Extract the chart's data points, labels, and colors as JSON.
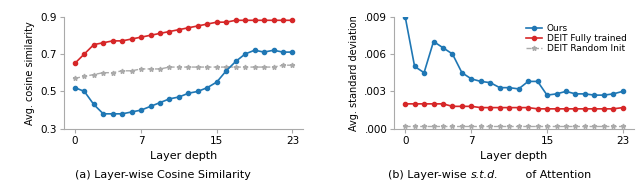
{
  "left_caption": "(a) Layer-wise Cosine Similarity",
  "right_caption": "(b) Layer-wise s.t.d. of Attention",
  "xlabel": "Layer depth",
  "left_ylabel": "Avg. cosine similarity",
  "right_ylabel": "Avg. standard deviation",
  "legend_labels": [
    "Ours",
    "DEIT Fully trained",
    "DEIT Random Init"
  ],
  "blue": "#1f77b4",
  "red": "#d62728",
  "gray": "#aaaaaa",
  "left_ylim": [
    0.3,
    0.9
  ],
  "left_yticks": [
    0.3,
    0.5,
    0.7,
    0.9
  ],
  "right_ylim": [
    0.0,
    0.009
  ],
  "right_yticks": [
    0.0,
    0.003,
    0.006,
    0.009
  ],
  "xticks": [
    0,
    7,
    15,
    23
  ],
  "x": [
    0,
    1,
    2,
    3,
    4,
    5,
    6,
    7,
    8,
    9,
    10,
    11,
    12,
    13,
    14,
    15,
    16,
    17,
    18,
    19,
    20,
    21,
    22,
    23
  ],
  "left_ours": [
    0.52,
    0.5,
    0.43,
    0.38,
    0.38,
    0.38,
    0.39,
    0.4,
    0.42,
    0.44,
    0.46,
    0.47,
    0.49,
    0.5,
    0.52,
    0.55,
    0.61,
    0.66,
    0.7,
    0.72,
    0.71,
    0.72,
    0.71,
    0.71
  ],
  "left_deit_full": [
    0.65,
    0.7,
    0.75,
    0.76,
    0.77,
    0.77,
    0.78,
    0.79,
    0.8,
    0.81,
    0.82,
    0.83,
    0.84,
    0.85,
    0.86,
    0.87,
    0.87,
    0.88,
    0.88,
    0.88,
    0.88,
    0.88,
    0.88,
    0.88
  ],
  "left_deit_rand": [
    0.57,
    0.58,
    0.59,
    0.6,
    0.6,
    0.61,
    0.61,
    0.62,
    0.62,
    0.62,
    0.63,
    0.63,
    0.63,
    0.63,
    0.63,
    0.63,
    0.63,
    0.63,
    0.63,
    0.63,
    0.63,
    0.63,
    0.64,
    0.64
  ],
  "right_ours": [
    0.009,
    0.005,
    0.0045,
    0.007,
    0.0065,
    0.006,
    0.0045,
    0.004,
    0.0038,
    0.0037,
    0.0033,
    0.0033,
    0.0032,
    0.0038,
    0.0038,
    0.0027,
    0.0028,
    0.003,
    0.0028,
    0.0028,
    0.0027,
    0.0027,
    0.0028,
    0.003
  ],
  "right_deit_full": [
    0.002,
    0.002,
    0.002,
    0.002,
    0.002,
    0.0018,
    0.0018,
    0.0018,
    0.0017,
    0.0017,
    0.0017,
    0.0017,
    0.0017,
    0.0017,
    0.0016,
    0.0016,
    0.0016,
    0.0016,
    0.0016,
    0.0016,
    0.0016,
    0.0016,
    0.0016,
    0.0017
  ],
  "right_deit_rand": [
    0.0002,
    0.0002,
    0.0002,
    0.0002,
    0.0002,
    0.0002,
    0.0002,
    0.0002,
    0.0002,
    0.0002,
    0.0002,
    0.0002,
    0.0002,
    0.0002,
    0.0002,
    0.0002,
    0.0002,
    0.0002,
    0.0002,
    0.0002,
    0.0002,
    0.0002,
    0.0002,
    0.0002
  ]
}
